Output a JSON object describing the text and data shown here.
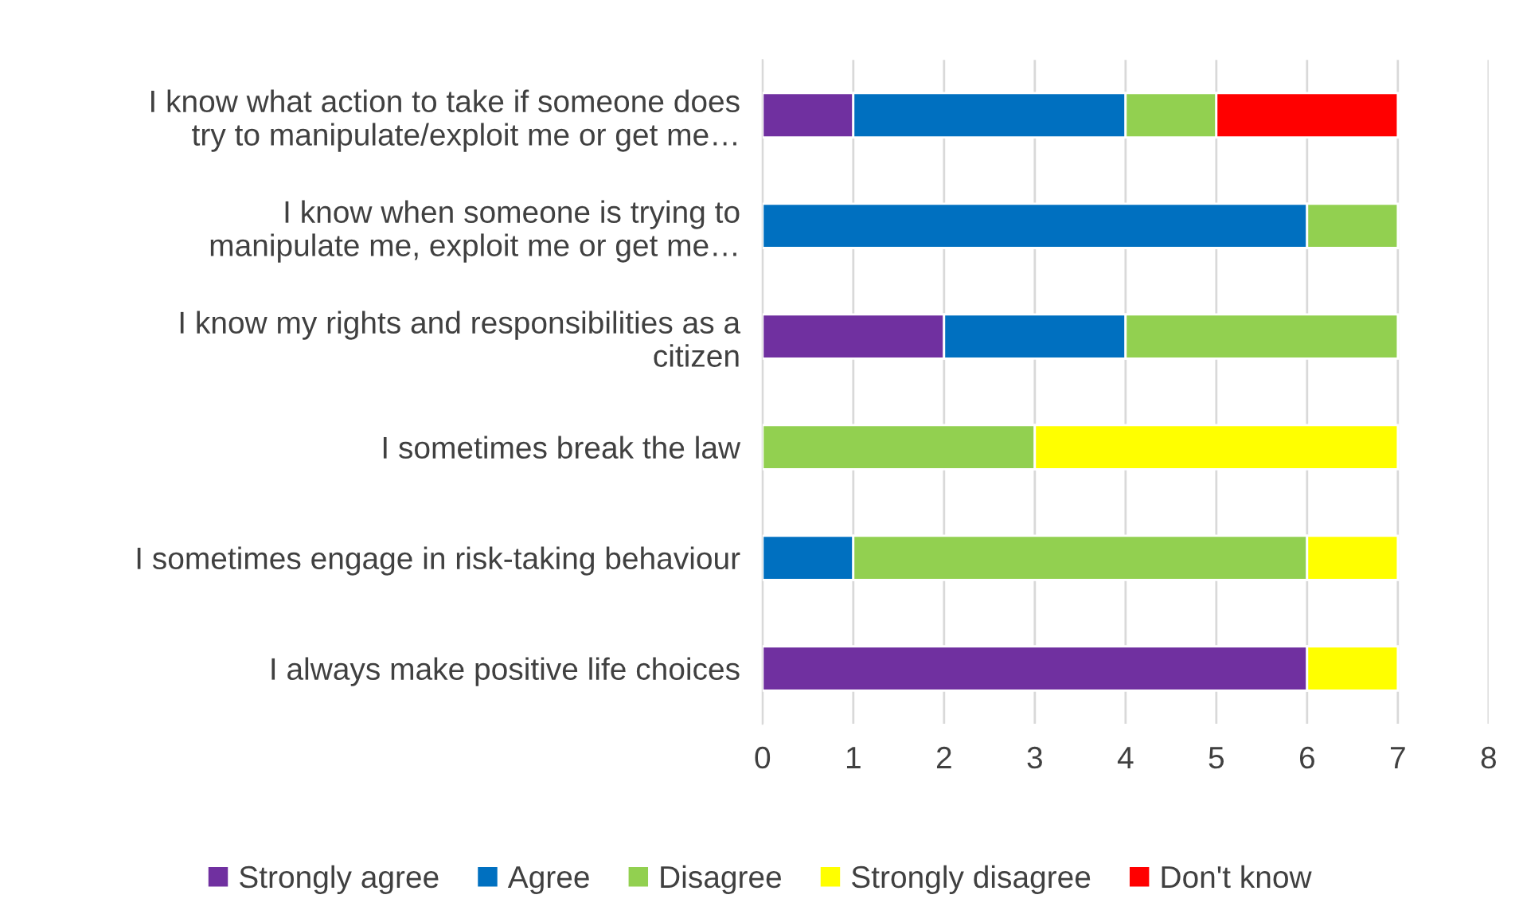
{
  "chart_data": {
    "type": "bar",
    "orientation": "horizontal",
    "stacked": true,
    "categories": [
      "I know what action to take if someone does\ntry to manipulate/exploit me or get me…",
      "I know when someone is trying to\nmanipulate me, exploit me or get me…",
      "I know my rights and responsibilities as a\ncitizen",
      "I sometimes break the law",
      "I sometimes engage in risk-taking behaviour",
      "I always make positive life choices"
    ],
    "series": [
      {
        "name": "Strongly agree",
        "color": "#7030a0",
        "values": [
          1,
          null,
          2,
          null,
          null,
          6
        ]
      },
      {
        "name": "Agree",
        "color": "#0070c0",
        "values": [
          3,
          6,
          2,
          null,
          1,
          null
        ]
      },
      {
        "name": "Disagree",
        "color": "#92d050",
        "values": [
          1,
          1,
          3,
          3,
          5,
          null
        ]
      },
      {
        "name": "Strongly disagree",
        "color": "#ffff00",
        "values": [
          null,
          null,
          null,
          4,
          1,
          1
        ]
      },
      {
        "name": "Don't know",
        "color": "#ff0000",
        "values": [
          2,
          null,
          null,
          null,
          null,
          null
        ]
      }
    ],
    "xlim": [
      0,
      8
    ],
    "xticks": [
      0,
      1,
      2,
      3,
      4,
      5,
      6,
      7,
      8
    ],
    "grid": "x",
    "legend": "bottom"
  }
}
